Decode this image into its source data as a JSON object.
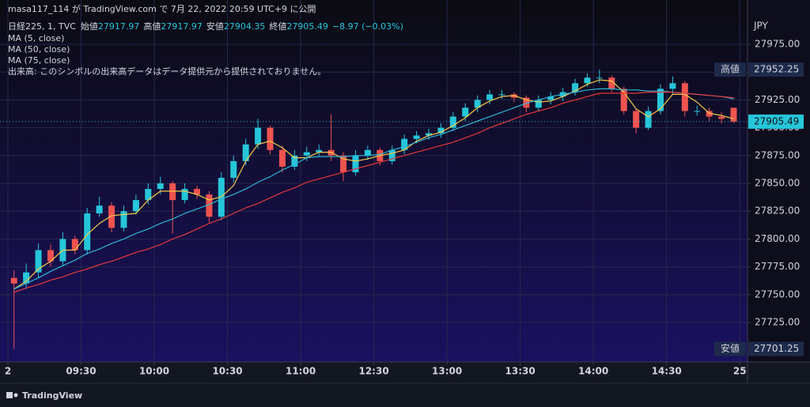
{
  "chart_data": {
    "type": "candlestick",
    "title": "masa117_114 が TradingView.com で 7月 22, 2022 20:59 UTC+9 に公開",
    "symbol": "日経225, 1, TVC",
    "ohlc_labels": [
      "始値",
      "高値",
      "安値",
      "終値"
    ],
    "change": "−8.97 (−0.03%)",
    "volume_note": "出来高: このシンボルの出来高データはデータ提供元から提供されておりません。",
    "currency": "JPY",
    "brand": "TradingView",
    "up_color": "#26c6da",
    "down_color": "#ef5350",
    "grid": true,
    "ylim": [
      27689.5,
      28014.8
    ],
    "yticks": [
      {
        "value": 27725,
        "label": "27725.00"
      },
      {
        "value": 27750,
        "label": "27750.00"
      },
      {
        "value": 27775,
        "label": "27775.00"
      },
      {
        "value": 27800,
        "label": "27800.00"
      },
      {
        "value": 27825,
        "label": "27825.00"
      },
      {
        "value": 27850,
        "label": "27850.00"
      },
      {
        "value": 27875,
        "label": "27875.00"
      },
      {
        "value": 27900,
        "label": "27900.00"
      },
      {
        "value": 27925,
        "label": "27925.00"
      },
      {
        "value": 27950,
        "label": "27950.00"
      },
      {
        "value": 27975,
        "label": "27975.00"
      }
    ],
    "xticks": [
      {
        "value": 0,
        "label": "2"
      },
      {
        "value": 6,
        "label": "09:30"
      },
      {
        "value": 12,
        "label": "10:00"
      },
      {
        "value": 18,
        "label": "10:30"
      },
      {
        "value": 24,
        "label": "11:00"
      },
      {
        "value": 30,
        "label": "12:30"
      },
      {
        "value": 36,
        "label": "13:00"
      },
      {
        "value": 42,
        "label": "13:30"
      },
      {
        "value": 48,
        "label": "14:00"
      },
      {
        "value": 54,
        "label": "14:30"
      },
      {
        "value": 60,
        "label": "25"
      }
    ],
    "candles": {
      "open": [
        27765,
        27760,
        27770,
        27790,
        27780,
        27800,
        27790,
        27823,
        27830,
        27810,
        27825,
        27835,
        27845,
        27850,
        27835,
        27845,
        27840,
        27820,
        27855,
        27870,
        27885,
        27900,
        27880,
        27865,
        27875,
        27878,
        27880,
        27875,
        27860,
        27875,
        27880,
        27870,
        27880,
        27890,
        27893,
        27895,
        27900,
        27910,
        27918,
        27925,
        27930,
        27930,
        27927,
        27918,
        27925,
        27928,
        27932,
        27940,
        27945,
        27945,
        27935,
        27915,
        27900,
        27915,
        27935,
        27940,
        27915,
        27915,
        27910,
        27917.97
      ],
      "high": [
        27772,
        27778,
        27796,
        27795,
        27806,
        27803,
        27828,
        27838,
        27833,
        27830,
        27840,
        27850,
        27856,
        27852,
        27850,
        27848,
        27843,
        27860,
        27875,
        27890,
        27908,
        27902,
        27884,
        27880,
        27883,
        27885,
        27912,
        27878,
        27880,
        27884,
        27882,
        27884,
        27894,
        27897,
        27899,
        27904,
        27914,
        27922,
        27929,
        27934,
        27934,
        27932,
        27929,
        27929,
        27932,
        27936,
        27944,
        27949,
        27952.25,
        27947,
        27937,
        27917,
        27919,
        27939,
        27946,
        27942,
        27920,
        27918,
        27914,
        27917.97
      ],
      "low": [
        27701.25,
        27755,
        27765,
        27775,
        27776,
        27786,
        27786,
        27820,
        27806,
        27807,
        27822,
        27831,
        27840,
        27805,
        27832,
        27836,
        27815,
        27817,
        27851,
        27866,
        27881,
        27876,
        27860,
        27862,
        27870,
        27874,
        27870,
        27852,
        27857,
        27871,
        27866,
        27867,
        27876,
        27886,
        27889,
        27891,
        27897,
        27906,
        27914,
        27921,
        27926,
        27923,
        27914,
        27915,
        27921,
        27924,
        27929,
        27937,
        27940,
        27932,
        27912,
        27895,
        27898,
        27912,
        27930,
        27910,
        27911,
        27906,
        27904,
        27904.35
      ],
      "close": [
        27760,
        27770,
        27790,
        27780,
        27800,
        27790,
        27823,
        27830,
        27810,
        27825,
        27835,
        27845,
        27850,
        27835,
        27845,
        27840,
        27820,
        27855,
        27870,
        27885,
        27900,
        27880,
        27865,
        27875,
        27878,
        27880,
        27875,
        27860,
        27875,
        27880,
        27870,
        27880,
        27890,
        27893,
        27895,
        27900,
        27910,
        27918,
        27925,
        27930,
        27930,
        27927,
        27918,
        27925,
        27928,
        27932,
        27940,
        27945,
        27945,
        27935,
        27915,
        27900,
        27915,
        27935,
        27940,
        27915,
        27915,
        27910,
        27908,
        27905.49
      ]
    },
    "moving_averages": [
      {
        "name": "MA (5, close)",
        "color": "#f7c948",
        "values": [
          27755,
          27762,
          27773,
          27780,
          27790,
          27790,
          27804,
          27814,
          27821,
          27822,
          27823,
          27835,
          27843,
          27843,
          27843,
          27840,
          27835,
          27838,
          27848,
          27870,
          27885,
          27888,
          27882,
          27873,
          27873,
          27878,
          27878,
          27872,
          27870,
          27872,
          27875,
          27877,
          27880,
          27888,
          27893,
          27896,
          27902,
          27909,
          27918,
          27924,
          27928,
          27929,
          27925,
          27923,
          27924,
          27928,
          27933,
          27939,
          27943,
          27942,
          27932,
          27917,
          27910,
          27917,
          27930,
          27930,
          27923,
          27913,
          27911,
          27908
        ]
      },
      {
        "name": "MA (50, close)",
        "color": "#2fb6d6",
        "values": [
          27755,
          27760,
          27765,
          27771,
          27776,
          27781,
          27787,
          27791,
          27796,
          27800,
          27805,
          27809,
          27814,
          27818,
          27823,
          27827,
          27831,
          27836,
          27840,
          27845,
          27851,
          27856,
          27862,
          27867,
          27873,
          27874,
          27874,
          27874,
          27875,
          27875,
          27876,
          27880,
          27883,
          27887,
          27891,
          27894,
          27898,
          27902,
          27906,
          27910,
          27914,
          27918,
          27922,
          27925,
          27928,
          27930,
          27932,
          27934,
          27935,
          27935,
          27934,
          27934,
          27933,
          27933,
          27932,
          27931,
          27930,
          27929,
          27928,
          27926
        ]
      },
      {
        "name": "MA (75, close)",
        "color": "#e5393a",
        "values": [
          27752,
          27756,
          27759,
          27763,
          27766,
          27770,
          27773,
          27777,
          27780,
          27784,
          27788,
          27791,
          27795,
          27800,
          27804,
          27809,
          27814,
          27818,
          27823,
          27828,
          27832,
          27837,
          27842,
          27846,
          27851,
          27854,
          27857,
          27860,
          27863,
          27866,
          27869,
          27872,
          27875,
          27878,
          27881,
          27884,
          27887,
          27891,
          27895,
          27900,
          27904,
          27908,
          27912,
          27915,
          27918,
          27922,
          27925,
          27928,
          27931,
          27931,
          27931,
          27931,
          27932,
          27932,
          27932,
          27931,
          27930,
          27929,
          27928,
          27927
        ]
      }
    ]
  }
}
